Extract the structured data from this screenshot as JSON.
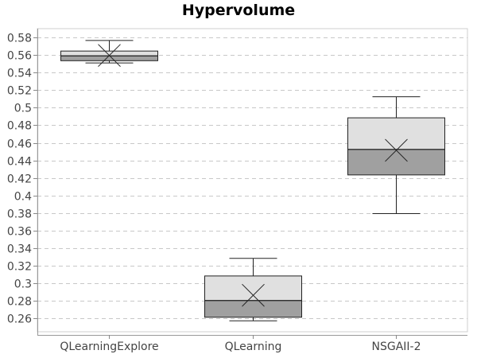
{
  "chart_data": {
    "type": "boxplot",
    "title": "Hypervolume",
    "xlabel": "",
    "ylabel": "",
    "ylim": [
      0.245,
      0.59
    ],
    "yticks": [
      0.26,
      0.28,
      0.3,
      0.32,
      0.34,
      0.36,
      0.38,
      0.4,
      0.42,
      0.44,
      0.46,
      0.48,
      0.5,
      0.52,
      0.54,
      0.56,
      0.58
    ],
    "ytick_labels": [
      "0.26",
      "0.28",
      "0.3",
      "0.32",
      "0.34",
      "0.36",
      "0.38",
      "0.4",
      "0.42",
      "0.44",
      "0.46",
      "0.48",
      "0.5",
      "0.52",
      "0.54",
      "0.56",
      "0.58"
    ],
    "grid": true,
    "categories": [
      "QLearningExplore",
      "QLearning",
      "NSGAII-2"
    ],
    "boxes": [
      {
        "min": 0.551,
        "q1": 0.5535,
        "median": 0.559,
        "q3": 0.5645,
        "max": 0.5765,
        "mean": 0.5595
      },
      {
        "min": 0.2575,
        "q1": 0.2615,
        "median": 0.2805,
        "q3": 0.3085,
        "max": 0.3285,
        "mean": 0.2865
      },
      {
        "min": 0.3795,
        "q1": 0.4235,
        "median": 0.4525,
        "q3": 0.4885,
        "max": 0.5125,
        "mean": 0.4515
      }
    ],
    "colors": {
      "upper_box": "#e0e0e0",
      "lower_box": "#a0a0a0",
      "grid": "#c8c8c8",
      "line": "#222222"
    }
  }
}
